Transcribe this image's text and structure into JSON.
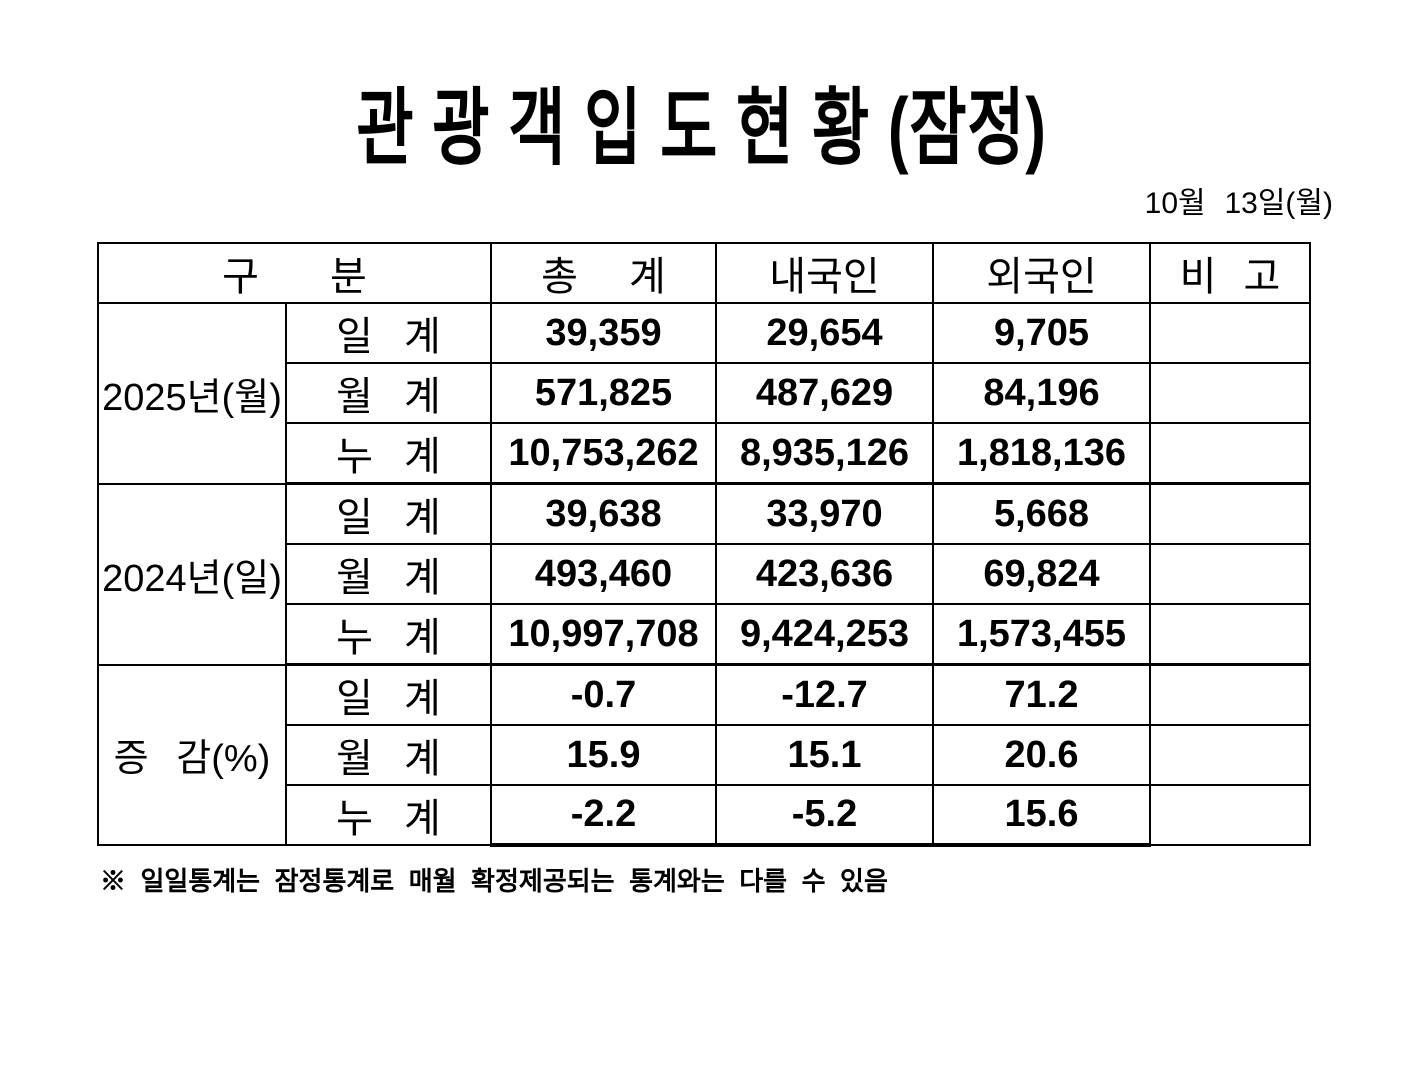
{
  "title": "관 광 객 입 도 현 황 (잠정)",
  "date": "10월 13일(월)",
  "colors": {
    "text": "#000000",
    "background": "#ffffff",
    "border": "#000000"
  },
  "table": {
    "headers": {
      "category": "구 분",
      "total": "총 계",
      "domestic": "내국인",
      "foreign": "외국인",
      "remarks": "비 고"
    },
    "groups": [
      {
        "label": "2025년(월)",
        "rows": [
          {
            "label": "일 계",
            "total": "39,359",
            "domestic": "29,654",
            "foreign": "9,705",
            "remark": ""
          },
          {
            "label": "월 계",
            "total": "571,825",
            "domestic": "487,629",
            "foreign": "84,196",
            "remark": ""
          },
          {
            "label": "누 계",
            "total": "10,753,262",
            "domestic": "8,935,126",
            "foreign": "1,818,136",
            "remark": ""
          }
        ]
      },
      {
        "label": "2024년(일)",
        "rows": [
          {
            "label": "일 계",
            "total": "39,638",
            "domestic": "33,970",
            "foreign": "5,668",
            "remark": ""
          },
          {
            "label": "월 계",
            "total": "493,460",
            "domestic": "423,636",
            "foreign": "69,824",
            "remark": ""
          },
          {
            "label": "누 계",
            "total": "10,997,708",
            "domestic": "9,424,253",
            "foreign": "1,573,455",
            "remark": ""
          }
        ]
      },
      {
        "label": "증 감(%)",
        "rows": [
          {
            "label": "일 계",
            "total": "-0.7",
            "domestic": "-12.7",
            "foreign": "71.2",
            "remark": ""
          },
          {
            "label": "월 계",
            "total": "15.9",
            "domestic": "15.1",
            "foreign": "20.6",
            "remark": ""
          },
          {
            "label": "누 계",
            "total": "-2.2",
            "domestic": "-5.2",
            "foreign": "15.6",
            "remark": ""
          }
        ]
      }
    ]
  },
  "footnote": "※ 일일통계는 잠정통계로 매월 확정제공되는 통계와는 다를 수 있음"
}
